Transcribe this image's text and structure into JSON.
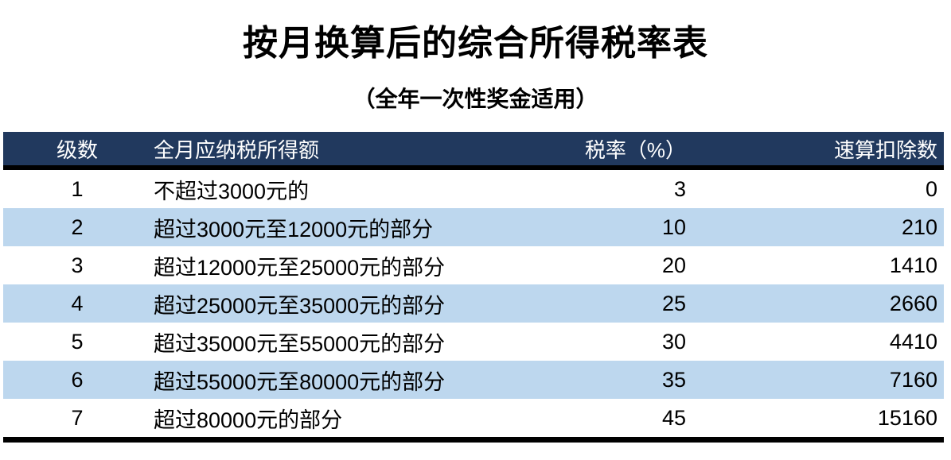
{
  "title": "按月换算后的综合所得税率表",
  "subtitle": "（全年一次性奖金适用）",
  "table": {
    "columns": [
      "级数",
      "全月应纳税所得额",
      "税率（%）",
      "速算扣除数"
    ],
    "rows": [
      [
        "1",
        "不超过3000元的",
        "3",
        "0"
      ],
      [
        "2",
        "超过3000元至12000元的部分",
        "10",
        "210"
      ],
      [
        "3",
        "超过12000元至25000元的部分",
        "20",
        "1410"
      ],
      [
        "4",
        "超过25000元至35000元的部分",
        "25",
        "2660"
      ],
      [
        "5",
        "超过35000元至55000元的部分",
        "30",
        "4410"
      ],
      [
        "6",
        "超过55000元至80000元的部分",
        "35",
        "7160"
      ],
      [
        "7",
        "超过80000元的部分",
        "45",
        "15160"
      ]
    ]
  },
  "colors": {
    "header_bg": "#21395E",
    "header_text": "#FFFFFF",
    "row_bg": "#FFFFFF",
    "row_alt_bg": "#BDD7EE",
    "border": "#000000"
  }
}
